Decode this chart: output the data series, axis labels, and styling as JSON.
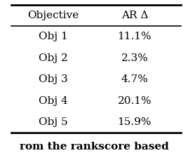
{
  "headers": [
    "Objective",
    "AR Δ"
  ],
  "rows": [
    [
      "Obj 1",
      "11.1%"
    ],
    [
      "Obj 2",
      "2.3%"
    ],
    [
      "Obj 3",
      "4.7%"
    ],
    [
      "Obj 4",
      "20.1%"
    ],
    [
      "Obj 5",
      "15.9%"
    ]
  ],
  "caption": "rom the rankscore based",
  "background_color": "#ffffff",
  "font_size": 11,
  "caption_font_size": 11
}
